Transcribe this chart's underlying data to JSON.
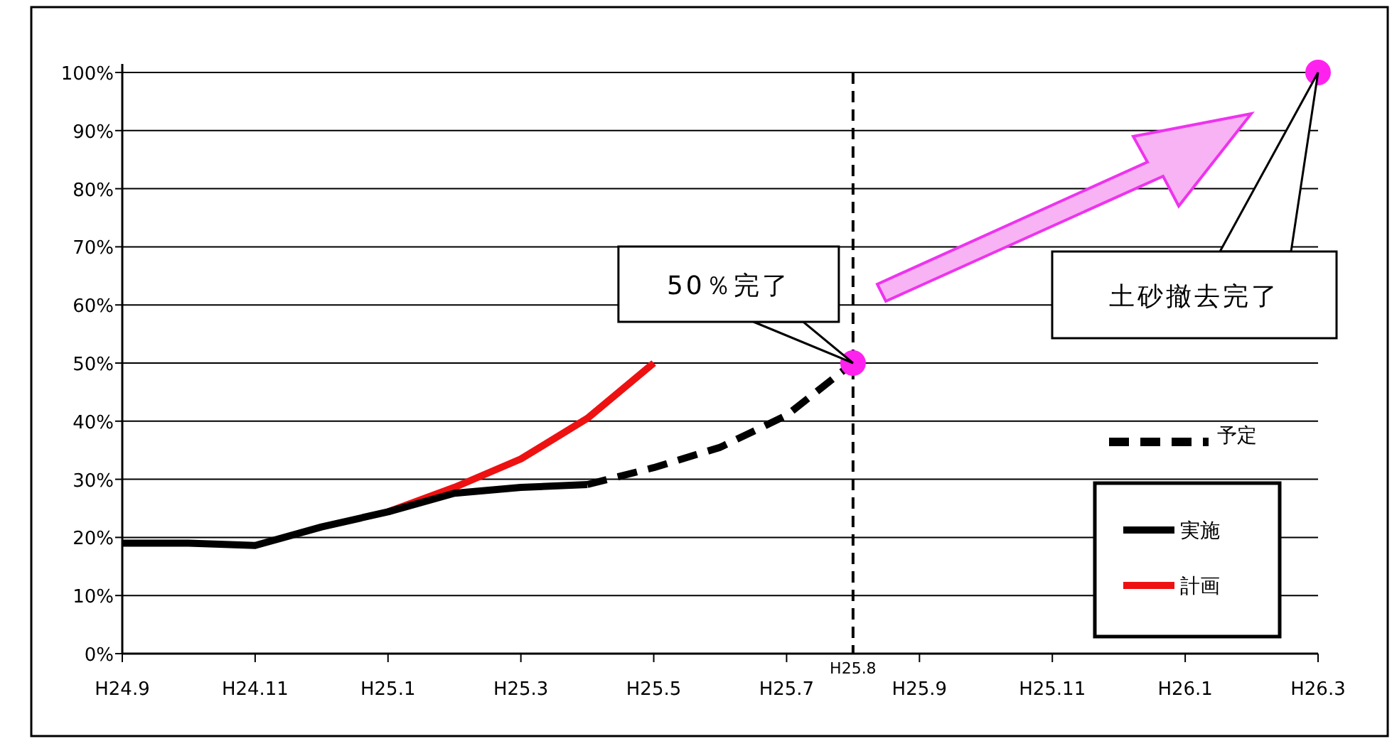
{
  "chart_data": {
    "type": "line",
    "ylim": [
      0,
      100
    ],
    "categories": [
      "H24.9",
      null,
      "H24.11",
      null,
      "H25.1",
      null,
      "H25.3",
      null,
      "H25.5",
      null,
      "H25.7",
      "H25.8",
      "H25.9",
      null,
      "H25.11",
      null,
      "H26.1",
      null,
      "H26.3"
    ],
    "yticks": [
      {
        "value": 0,
        "label": "0%"
      },
      {
        "value": 10,
        "label": "10%"
      },
      {
        "value": 20,
        "label": "20%"
      },
      {
        "value": 30,
        "label": "30%"
      },
      {
        "value": 40,
        "label": "40%"
      },
      {
        "value": 50,
        "label": "50%"
      },
      {
        "value": 60,
        "label": "60%"
      },
      {
        "value": 70,
        "label": "70%"
      },
      {
        "value": 80,
        "label": "80%"
      },
      {
        "value": 90,
        "label": "90%"
      },
      {
        "value": 100,
        "label": "100%"
      }
    ],
    "grid": "y",
    "legend": "right",
    "series": [
      {
        "name": "予定",
        "color": "#000000",
        "line_style": "dashed",
        "values": [
          null,
          null,
          null,
          null,
          null,
          null,
          null,
          29.1,
          32,
          35.5,
          41,
          50,
          null,
          null,
          null,
          null,
          null,
          null,
          null
        ]
      },
      {
        "name": "実施",
        "color": "#000000",
        "line_style": "solid",
        "values": [
          19,
          19,
          18.6,
          21.8,
          24.4,
          27.6,
          28.6,
          29.1,
          null,
          null,
          null,
          null,
          null,
          null,
          null,
          null,
          null,
          null,
          null
        ]
      },
      {
        "name": "計画",
        "color": "#ee1111",
        "line_style": "solid",
        "values": [
          null,
          null,
          null,
          null,
          24.4,
          28.6,
          33.5,
          40.5,
          50,
          null,
          null,
          null,
          null,
          null,
          null,
          null,
          null,
          null,
          null
        ]
      },
      {
        "type": "scatter",
        "marker": "circle",
        "color": "#ff22ee",
        "x": [
          "H25.8",
          "H26.3"
        ],
        "values": [
          50,
          100
        ]
      }
    ],
    "ref_lines": [
      {
        "axis": "x",
        "value": "H25.8",
        "color": "#000000",
        "line_style": "dashed"
      }
    ],
    "annotations": [
      {
        "text": "50％完了",
        "x": "H25.8",
        "y": 50
      },
      "土砂撤去完了"
    ]
  }
}
